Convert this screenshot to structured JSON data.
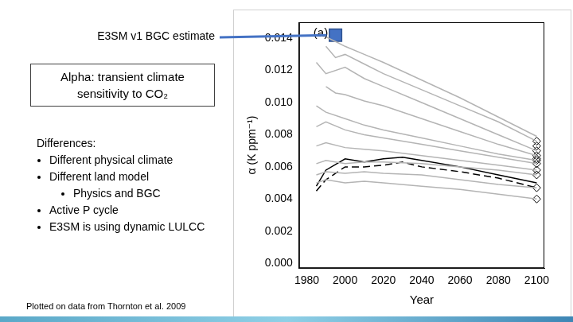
{
  "slide": {
    "callout": "E3SM v1 BGC estimate",
    "definition": [
      "Alpha: transient climate",
      "sensitivity to CO₂"
    ],
    "differences": {
      "heading": "Differences:",
      "items": [
        {
          "text": "Different physical climate"
        },
        {
          "text": "Different land model",
          "subitems": [
            "Physics and BGC"
          ]
        },
        {
          "text": "Active P cycle"
        },
        {
          "text": "E3SM is using dynamic LULCC"
        }
      ]
    },
    "source": "Plotted on data from Thornton et al. 2009"
  },
  "chart_data": {
    "type": "line",
    "annotations": [
      "(a)"
    ],
    "x_label": "Year",
    "y_label": "α (K ppm⁻¹)",
    "xlim": [
      1976,
      2104
    ],
    "ylim": [
      -0.0003,
      0.015
    ],
    "xticks": [
      1980,
      2000,
      2020,
      2040,
      2060,
      2080,
      2100
    ],
    "yticks": [
      {
        "value": 0,
        "label": "0.000"
      },
      {
        "value": 0.002,
        "label": "0.002"
      },
      {
        "value": 0.004,
        "label": "0.004"
      },
      {
        "value": 0.006,
        "label": "0.006"
      },
      {
        "value": 0.008,
        "label": "0.008"
      },
      {
        "value": 0.01,
        "label": "0.010"
      },
      {
        "value": 0.012,
        "label": "0.012"
      },
      {
        "value": 0.014,
        "label": "0.014"
      }
    ],
    "grid": false,
    "series": [
      {
        "color": "#b4b4b4",
        "marker": "none",
        "x": [
          1988,
          1995,
          2000,
          2010,
          2020,
          2040,
          2060,
          2080,
          2100
        ],
        "values": [
          0.0142,
          0.0138,
          0.0135,
          0.013,
          0.0125,
          0.0114,
          0.0103,
          0.0091,
          0.0079
        ]
      },
      {
        "color": "#b4b4b4",
        "marker": "none",
        "x": [
          1990,
          1995,
          2000,
          2010,
          2020,
          2040,
          2060,
          2080,
          2100
        ],
        "values": [
          0.0135,
          0.0128,
          0.013,
          0.0124,
          0.0118,
          0.0108,
          0.0098,
          0.0088,
          0.0076
        ]
      },
      {
        "color": "#b4b4b4",
        "marker": "none",
        "x": [
          1985,
          1990,
          2000,
          2010,
          2020,
          2040,
          2060,
          2080,
          2100
        ],
        "values": [
          0.0125,
          0.0118,
          0.0122,
          0.0115,
          0.011,
          0.01,
          0.009,
          0.008,
          0.007
        ]
      },
      {
        "color": "#b4b4b4",
        "marker": "none",
        "x": [
          1990,
          1995,
          2000,
          2010,
          2020,
          2040,
          2060,
          2080,
          2100
        ],
        "values": [
          0.011,
          0.0106,
          0.0105,
          0.0101,
          0.0098,
          0.009,
          0.0082,
          0.0074,
          0.0067
        ]
      },
      {
        "color": "#b4b4b4",
        "marker": "none",
        "x": [
          1985,
          1990,
          2000,
          2010,
          2020,
          2040,
          2060,
          2080,
          2100
        ],
        "values": [
          0.0098,
          0.0094,
          0.009,
          0.0086,
          0.0083,
          0.0078,
          0.0073,
          0.0068,
          0.0064
        ]
      },
      {
        "color": "#b4b4b4",
        "marker": "none",
        "x": [
          1985,
          1990,
          2000,
          2010,
          2020,
          2040,
          2060,
          2080,
          2100
        ],
        "values": [
          0.0085,
          0.0088,
          0.0083,
          0.008,
          0.0078,
          0.0074,
          0.007,
          0.0066,
          0.0062
        ]
      },
      {
        "color": "#b4b4b4",
        "marker": "none",
        "x": [
          1985,
          1990,
          2000,
          2010,
          2020,
          2040,
          2060,
          2080,
          2100
        ],
        "values": [
          0.0073,
          0.0075,
          0.0072,
          0.0071,
          0.007,
          0.0067,
          0.0064,
          0.0061,
          0.0058
        ]
      },
      {
        "color": "#b4b4b4",
        "marker": "none",
        "x": [
          1985,
          1990,
          2000,
          2010,
          2020,
          2040,
          2060,
          2080,
          2100
        ],
        "values": [
          0.0062,
          0.0064,
          0.0062,
          0.0063,
          0.0063,
          0.0062,
          0.006,
          0.0058,
          0.0055
        ]
      },
      {
        "color": "#b4b4b4",
        "marker": "none",
        "x": [
          1985,
          1990,
          2000,
          2010,
          2020,
          2040,
          2060,
          2080,
          2100
        ],
        "values": [
          0.0055,
          0.0057,
          0.0056,
          0.0057,
          0.0056,
          0.0055,
          0.0052,
          0.0049,
          0.0047
        ]
      },
      {
        "color": "#b4b4b4",
        "marker": "none",
        "x": [
          1985,
          1990,
          2000,
          2010,
          2020,
          2040,
          2060,
          2080,
          2100
        ],
        "values": [
          0.005,
          0.0052,
          0.005,
          0.0051,
          0.005,
          0.0048,
          0.0046,
          0.0043,
          0.004
        ]
      },
      {
        "color": "#000000",
        "marker": "none",
        "line_style": "solid",
        "x": [
          1985,
          1990,
          2000,
          2010,
          2020,
          2030,
          2040,
          2060,
          2080,
          2100
        ],
        "values": [
          0.0048,
          0.0058,
          0.0065,
          0.0063,
          0.0065,
          0.0066,
          0.0064,
          0.006,
          0.0055,
          0.005
        ]
      },
      {
        "color": "#000000",
        "marker": "none",
        "line_style": "dashed",
        "x": [
          1985,
          1990,
          2000,
          2010,
          2020,
          2030,
          2040,
          2060,
          2080,
          2100
        ],
        "values": [
          0.0045,
          0.0052,
          0.006,
          0.006,
          0.0061,
          0.0063,
          0.006,
          0.0057,
          0.0053,
          0.0047
        ]
      },
      {
        "type": "scatter",
        "marker": "diamond",
        "color": "#000000",
        "x": [
          2100,
          2100,
          2100,
          2100,
          2100,
          2100,
          2100,
          2100,
          2100,
          2100,
          2100
        ],
        "values": [
          0.0076,
          0.0073,
          0.007,
          0.0067,
          0.0065,
          0.0064,
          0.0062,
          0.0058,
          0.0055,
          0.0047,
          0.004
        ]
      },
      {
        "type": "scatter",
        "marker": "square",
        "color": "#4472c4",
        "x": [
          1995
        ],
        "values": [
          0.0142
        ]
      }
    ]
  }
}
